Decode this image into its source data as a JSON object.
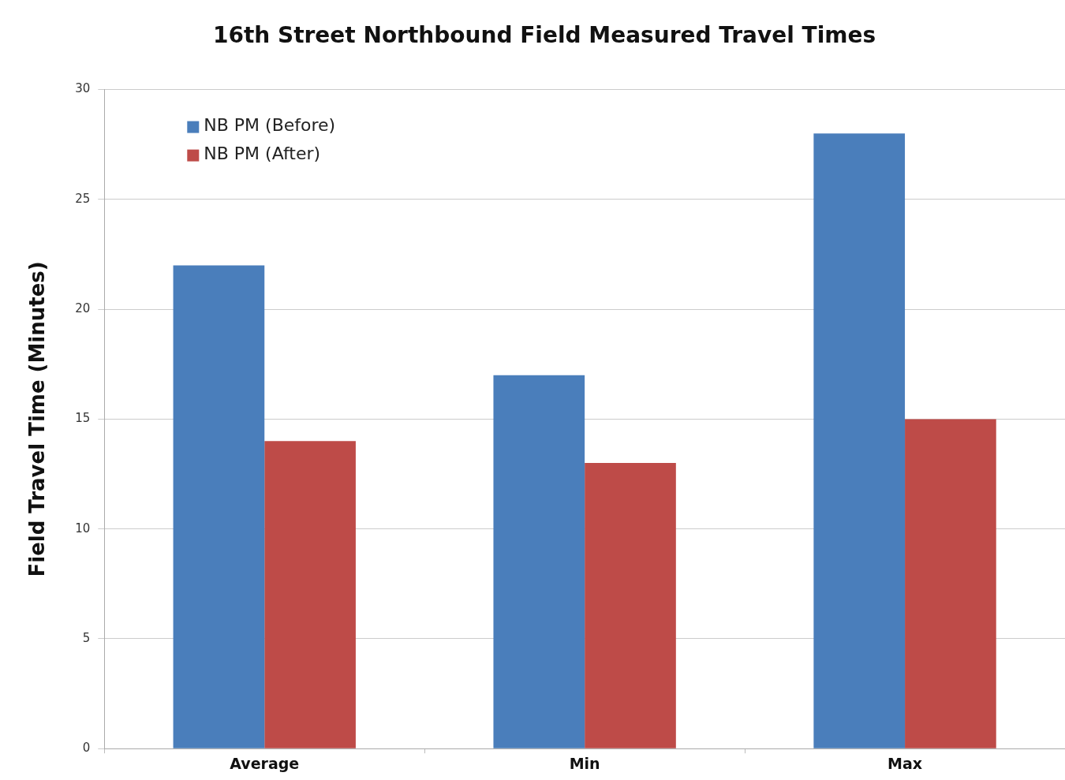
{
  "chart_data": {
    "type": "bar",
    "title": "16th Street Northbound Field Measured Travel Times",
    "ylabel": "Field Travel Time (Minutes)",
    "categories": [
      "Average",
      "Min",
      "Max"
    ],
    "series": [
      {
        "name": "NB PM (Before)",
        "color": "#4a7ebb",
        "values": [
          22,
          17,
          28
        ]
      },
      {
        "name": "NB PM (After)",
        "color": "#be4b48",
        "values": [
          14,
          13,
          15
        ]
      }
    ],
    "ylim": [
      0,
      30
    ],
    "yticks": [
      0,
      5,
      10,
      15,
      20,
      25,
      30
    ],
    "grid": "y",
    "legend": "top left"
  }
}
